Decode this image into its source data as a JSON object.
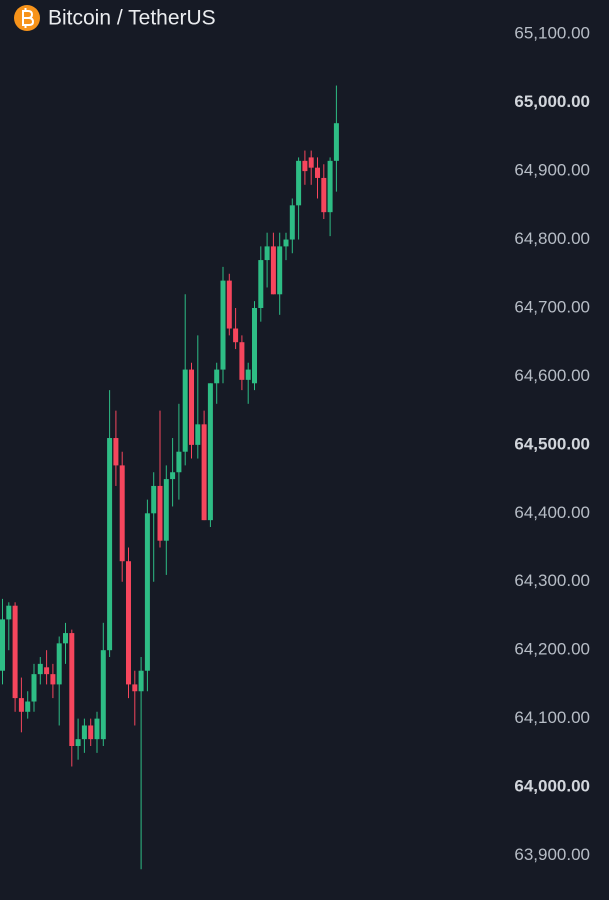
{
  "chart_data": {
    "type": "candlestick",
    "title": "Bitcoin / TetherUS",
    "up_color": "#2ebd85",
    "down_color": "#f6465d",
    "ylim": [
      63835,
      65150
    ],
    "yticks": [
      {
        "value": 65100,
        "label": "65,100.00"
      },
      {
        "value": 65000,
        "label": "65,000.00"
      },
      {
        "value": 64900,
        "label": "64,900.00"
      },
      {
        "value": 64800,
        "label": "64,800.00"
      },
      {
        "value": 64700,
        "label": "64,700.00"
      },
      {
        "value": 64600,
        "label": "64,600.00"
      },
      {
        "value": 64500,
        "label": "64,500.00"
      },
      {
        "value": 64400,
        "label": "64,400.00"
      },
      {
        "value": 64300,
        "label": "64,300.00"
      },
      {
        "value": 64200,
        "label": "64,200.00"
      },
      {
        "value": 64100,
        "label": "64,100.00"
      },
      {
        "value": 64000,
        "label": "64,000.00"
      },
      {
        "value": 63900,
        "label": "63,900.00"
      }
    ],
    "open": [
      64170,
      64245,
      64265,
      64130,
      64110,
      64125,
      64165,
      64175,
      64165,
      64150,
      64210,
      64225,
      64060,
      64070,
      64090,
      64070,
      64070,
      64200,
      64510,
      64470,
      64330,
      64150,
      64140,
      64170,
      64400,
      64440,
      64360,
      64450,
      64460,
      64490,
      64610,
      64500,
      64530,
      64390,
      64590,
      64610,
      64740,
      64670,
      64650,
      64595,
      64590,
      64700,
      64770,
      64790,
      64720,
      64790,
      64800,
      64850,
      64915,
      64920,
      64905,
      64890,
      64840,
      64915
    ],
    "high": [
      64275,
      64270,
      64270,
      64160,
      64140,
      64180,
      64190,
      64200,
      64180,
      64220,
      64240,
      64230,
      64100,
      64100,
      64100,
      64110,
      64240,
      64580,
      64550,
      64490,
      64350,
      64170,
      64190,
      64420,
      64460,
      64550,
      64470,
      64510,
      64560,
      64720,
      64620,
      64660,
      64550,
      64590,
      64620,
      64760,
      64750,
      64700,
      64660,
      64620,
      64710,
      64790,
      64810,
      64810,
      64810,
      64810,
      64860,
      64920,
      64930,
      64930,
      64920,
      64910,
      64920,
      65025
    ],
    "low": [
      64150,
      64200,
      64110,
      64080,
      64100,
      64110,
      64150,
      64150,
      64130,
      64090,
      64180,
      64030,
      64040,
      64050,
      64060,
      64050,
      64060,
      64190,
      64440,
      64300,
      64130,
      64090,
      63880,
      64140,
      64300,
      64350,
      64310,
      64410,
      64420,
      64470,
      64480,
      64480,
      64390,
      64380,
      64560,
      64590,
      64660,
      64640,
      64580,
      64560,
      64580,
      64680,
      64730,
      64720,
      64690,
      64770,
      64780,
      64800,
      64880,
      64880,
      64860,
      64830,
      64805,
      64870
    ],
    "close": [
      64245,
      64265,
      64130,
      64110,
      64125,
      64165,
      64180,
      64165,
      64150,
      64210,
      64225,
      64060,
      64070,
      64090,
      64070,
      64100,
      64200,
      64510,
      64470,
      64330,
      64150,
      64140,
      64170,
      64400,
      64440,
      64360,
      64450,
      64460,
      64490,
      64610,
      64500,
      64530,
      64390,
      64590,
      64610,
      64740,
      64670,
      64650,
      64595,
      64610,
      64700,
      64770,
      64790,
      64720,
      64790,
      64800,
      64850,
      64915,
      64900,
      64905,
      64890,
      64840,
      64915,
      64970
    ]
  }
}
